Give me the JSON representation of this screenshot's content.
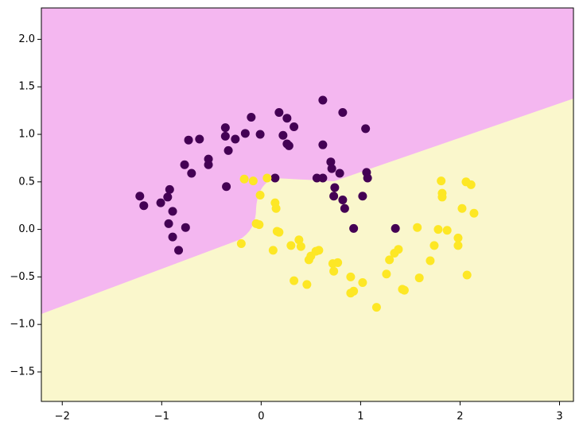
{
  "chart_data": {
    "type": "scatter",
    "xlim": [
      -2.21,
      3.14
    ],
    "ylim": [
      -1.81,
      2.33
    ],
    "xticks": [
      {
        "value": -2,
        "label": "−2"
      },
      {
        "value": -1,
        "label": "−1"
      },
      0,
      1,
      2,
      3
    ],
    "yticks": [
      {
        "value": -1.5,
        "label": "−1.5"
      },
      {
        "value": -1.0,
        "label": "−1.0"
      },
      {
        "value": -0.5,
        "label": "−0.5"
      },
      {
        "value": 0,
        "label": "0.0"
      },
      0.5,
      {
        "value": 1.0,
        "label": "1.0"
      },
      1.5,
      {
        "value": 2.0,
        "label": "2.0"
      }
    ],
    "grid": false,
    "series": [
      {
        "color": "#440154",
        "x": [
          -1.22,
          -1.18,
          -1.01,
          -0.94,
          -0.92,
          -0.93,
          -0.89,
          -0.89,
          -0.83,
          -0.76,
          -0.77,
          -0.7,
          -0.73,
          -0.62,
          -0.53,
          -0.53,
          -0.35,
          -0.33,
          -0.36,
          -0.36,
          -0.26,
          -0.16,
          -0.1,
          -0.01,
          0.14,
          0.18,
          0.22,
          0.26,
          0.26,
          0.28,
          0.33,
          0.56,
          0.62,
          0.62,
          0.62,
          0.7,
          0.71,
          0.79,
          0.74,
          0.73,
          0.82,
          0.82,
          0.84,
          0.93,
          1.02,
          1.05,
          1.06,
          1.07,
          1.35
        ],
        "values": [
          0.35,
          0.25,
          0.28,
          0.34,
          0.42,
          0.06,
          0.19,
          -0.08,
          -0.22,
          0.02,
          0.68,
          0.59,
          0.94,
          0.95,
          0.74,
          0.68,
          0.45,
          0.83,
          0.98,
          1.07,
          0.95,
          1.01,
          1.18,
          1.0,
          0.54,
          1.23,
          0.99,
          1.17,
          0.9,
          0.88,
          1.08,
          0.54,
          0.54,
          1.36,
          0.89,
          0.71,
          0.64,
          0.59,
          0.44,
          0.35,
          1.23,
          0.31,
          0.22,
          0.01,
          0.35,
          1.06,
          0.6,
          0.54,
          0.01
        ]
      },
      {
        "color": "#fde725",
        "x": [
          -0.17,
          -0.08,
          0.06,
          -0.01,
          0.14,
          0.15,
          -0.05,
          -0.02,
          -0.2,
          0.16,
          0.18,
          0.12,
          0.3,
          0.38,
          0.4,
          0.48,
          0.5,
          0.55,
          0.58,
          0.33,
          0.46,
          0.72,
          0.73,
          0.77,
          0.9,
          0.93,
          0.9,
          1.02,
          1.16,
          1.26,
          1.29,
          1.34,
          1.38,
          1.42,
          1.44,
          1.57,
          1.59,
          1.7,
          1.74,
          1.78,
          1.81,
          1.82,
          1.82,
          1.87,
          1.98,
          1.98,
          2.02,
          2.06,
          2.11,
          2.07,
          2.14
        ],
        "values": [
          0.53,
          0.51,
          0.54,
          0.36,
          0.28,
          0.22,
          0.06,
          0.05,
          -0.15,
          -0.02,
          -0.03,
          -0.22,
          -0.17,
          -0.11,
          -0.18,
          -0.32,
          -0.28,
          -0.23,
          -0.22,
          -0.54,
          -0.58,
          -0.36,
          -0.44,
          -0.35,
          -0.5,
          -0.65,
          -0.67,
          -0.56,
          -0.82,
          -0.47,
          -0.32,
          -0.25,
          -0.21,
          -0.63,
          -0.64,
          0.02,
          -0.51,
          -0.33,
          -0.17,
          0.0,
          0.51,
          0.38,
          0.34,
          -0.01,
          -0.09,
          -0.17,
          0.22,
          0.5,
          0.47,
          -0.48,
          0.17
        ]
      }
    ]
  }
}
